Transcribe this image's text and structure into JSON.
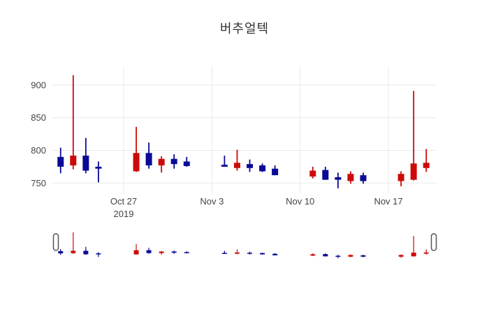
{
  "title": "버추얼텍",
  "colors": {
    "increasing": "#cc0a0a",
    "decreasing": "#0a0a96",
    "grid": "#e9e9e9",
    "tick_label": "#444444",
    "title_text": "#333333",
    "background": "#ffffff",
    "slider_handle_border": "#555555",
    "slider_handle_fill": "#ffffff"
  },
  "y_axis": {
    "tick_labels": [
      "900",
      "850",
      "800",
      "750"
    ],
    "tick_values": [
      900,
      850,
      800,
      750
    ]
  },
  "x_axis": {
    "ticks": [
      {
        "label": "Oct 27",
        "sublabel": "2019",
        "date": "2019-10-27"
      },
      {
        "label": "Nov 3",
        "sublabel": "",
        "date": "2019-11-03"
      },
      {
        "label": "Nov 10",
        "sublabel": "",
        "date": "2019-11-10"
      },
      {
        "label": "Nov 17",
        "sublabel": "",
        "date": "2019-11-17"
      }
    ]
  },
  "rangeslider": {
    "visible": true,
    "handles": [
      "left",
      "right"
    ]
  },
  "chart_data": {
    "type": "candlestick",
    "title": "버추얼텍",
    "x": [
      "2019-10-22",
      "2019-10-23",
      "2019-10-24",
      "2019-10-25",
      "2019-10-28",
      "2019-10-29",
      "2019-10-30",
      "2019-10-31",
      "2019-11-01",
      "2019-11-04",
      "2019-11-05",
      "2019-11-06",
      "2019-11-07",
      "2019-11-08",
      "2019-11-11",
      "2019-11-12",
      "2019-11-13",
      "2019-11-14",
      "2019-11-15",
      "2019-11-18",
      "2019-11-19",
      "2019-11-20"
    ],
    "open": [
      790,
      777,
      792,
      775,
      768,
      796,
      777,
      787,
      783,
      778,
      773,
      779,
      777,
      772,
      760,
      770,
      759,
      753,
      762,
      753,
      755,
      773
    ],
    "high": [
      804,
      915,
      819,
      783,
      836,
      812,
      791,
      794,
      790,
      792,
      801,
      786,
      780,
      777,
      775,
      775,
      766,
      768,
      766,
      768,
      891,
      802
    ],
    "low": [
      765,
      771,
      765,
      751,
      767,
      772,
      766,
      772,
      775,
      775,
      769,
      767,
      767,
      762,
      757,
      755,
      742,
      749,
      749,
      745,
      754,
      767
    ],
    "close": [
      775,
      792,
      769,
      772,
      796,
      777,
      787,
      779,
      776,
      775,
      781,
      773,
      768,
      762,
      769,
      755,
      755,
      764,
      753,
      764,
      780,
      781
    ],
    "increasing_color": "#cc0a0a",
    "decreasing_color": "#0a0a96",
    "ylim": [
      733,
      929
    ],
    "grid": true,
    "legend": "none",
    "rangeslider": true
  }
}
